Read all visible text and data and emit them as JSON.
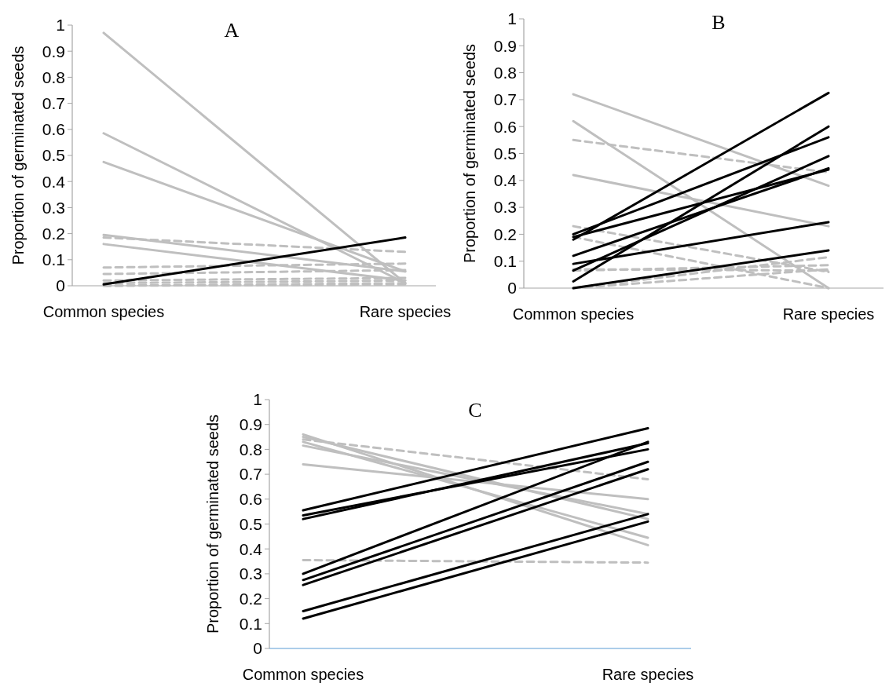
{
  "chart_data": [
    {
      "type": "line",
      "title": "A",
      "ylabel": "Proportion of germinated seeds",
      "categories": [
        "Common species",
        "Rare species"
      ],
      "ylim": [
        0,
        1
      ],
      "yticks": [
        0,
        0.1,
        0.2,
        0.3,
        0.4,
        0.5,
        0.6,
        0.7,
        0.8,
        0.9,
        1
      ],
      "grid": false,
      "marker": "none",
      "series": [
        {
          "color": "#bfbfbf",
          "line_style": "dashed",
          "values": [
            0.185,
            0.13
          ]
        },
        {
          "color": "#bfbfbf",
          "line_style": "dashed",
          "values": [
            0.07,
            0.085
          ]
        },
        {
          "color": "#bfbfbf",
          "line_style": "dashed",
          "values": [
            0.045,
            0.06
          ]
        },
        {
          "color": "#bfbfbf",
          "line_style": "dashed",
          "values": [
            0.02,
            0.03
          ]
        },
        {
          "color": "#bfbfbf",
          "line_style": "dashed",
          "values": [
            0.01,
            0.02
          ]
        },
        {
          "color": "#bfbfbf",
          "line_style": "dashed",
          "values": [
            0,
            0.005
          ]
        },
        {
          "color": "#bfbfbf",
          "line_style": "dashed",
          "values": [
            0,
            0.01
          ]
        },
        {
          "color": "#bfbfbf",
          "line_style": "solid",
          "values": [
            0.97,
            0.01
          ]
        },
        {
          "color": "#bfbfbf",
          "line_style": "solid",
          "values": [
            0.585,
            0.01
          ]
        },
        {
          "color": "#bfbfbf",
          "line_style": "solid",
          "values": [
            0.475,
            0.055
          ]
        },
        {
          "color": "#bfbfbf",
          "line_style": "solid",
          "values": [
            0.195,
            0.055
          ]
        },
        {
          "color": "#bfbfbf",
          "line_style": "solid",
          "values": [
            0.16,
            0.02
          ]
        },
        {
          "color": "#000000",
          "line_style": "solid",
          "values": [
            0.005,
            0.185
          ]
        }
      ]
    },
    {
      "type": "line",
      "title": "B",
      "ylabel": "Proportion of germinated seeds",
      "categories": [
        "Common species",
        "Rare species"
      ],
      "ylim": [
        0,
        1
      ],
      "yticks": [
        0,
        0.1,
        0.2,
        0.3,
        0.4,
        0.5,
        0.6,
        0.7,
        0.8,
        0.9,
        1
      ],
      "grid": false,
      "marker": "none",
      "series": [
        {
          "color": "#bfbfbf",
          "line_style": "dashed",
          "values": [
            0.55,
            0.43
          ]
        },
        {
          "color": "#bfbfbf",
          "line_style": "dashed",
          "values": [
            0.23,
            0.06
          ]
        },
        {
          "color": "#bfbfbf",
          "line_style": "dashed",
          "values": [
            0.19,
            0
          ]
        },
        {
          "color": "#bfbfbf",
          "line_style": "dashed",
          "values": [
            0.07,
            0.065
          ]
        },
        {
          "color": "#bfbfbf",
          "line_style": "dashed",
          "values": [
            0.065,
            0.085
          ]
        },
        {
          "color": "#bfbfbf",
          "line_style": "dashed",
          "values": [
            0,
            0.115
          ]
        },
        {
          "color": "#bfbfbf",
          "line_style": "dashed",
          "values": [
            0,
            0.07
          ]
        },
        {
          "color": "#bfbfbf",
          "line_style": "solid",
          "values": [
            0.72,
            0.38
          ]
        },
        {
          "color": "#bfbfbf",
          "line_style": "solid",
          "values": [
            0.62,
            0
          ]
        },
        {
          "color": "#bfbfbf",
          "line_style": "solid",
          "values": [
            0.42,
            0.23
          ]
        },
        {
          "color": "#000000",
          "line_style": "solid",
          "values": [
            0.18,
            0.725
          ]
        },
        {
          "color": "#000000",
          "line_style": "solid",
          "values": [
            0.025,
            0.6
          ]
        },
        {
          "color": "#000000",
          "line_style": "solid",
          "values": [
            0.2,
            0.56
          ]
        },
        {
          "color": "#000000",
          "line_style": "solid",
          "values": [
            0.065,
            0.49
          ]
        },
        {
          "color": "#000000",
          "line_style": "solid",
          "values": [
            0.12,
            0.445
          ]
        },
        {
          "color": "#000000",
          "line_style": "solid",
          "values": [
            0.19,
            0.44
          ]
        },
        {
          "color": "#000000",
          "line_style": "solid",
          "values": [
            0.09,
            0.245
          ]
        },
        {
          "color": "#000000",
          "line_style": "solid",
          "values": [
            0,
            0.14
          ]
        }
      ]
    },
    {
      "type": "line",
      "title": "C",
      "ylabel": "Proportion of germinated seeds",
      "categories": [
        "Common species",
        "Rare species"
      ],
      "ylim": [
        0,
        1
      ],
      "yticks": [
        0,
        0.1,
        0.2,
        0.3,
        0.4,
        0.5,
        0.6,
        0.7,
        0.8,
        0.9,
        1
      ],
      "grid": false,
      "marker": "none",
      "series": [
        {
          "color": "#bfbfbf",
          "line_style": "dashed",
          "values": [
            0.84,
            0.68
          ]
        },
        {
          "color": "#bfbfbf",
          "line_style": "dashed",
          "values": [
            0.355,
            0.345
          ]
        },
        {
          "color": "#bfbfbf",
          "line_style": "solid",
          "values": [
            0.86,
            0.415
          ]
        },
        {
          "color": "#bfbfbf",
          "line_style": "solid",
          "values": [
            0.85,
            0.52
          ]
        },
        {
          "color": "#bfbfbf",
          "line_style": "solid",
          "values": [
            0.83,
            0.445
          ]
        },
        {
          "color": "#bfbfbf",
          "line_style": "solid",
          "values": [
            0.815,
            0.54
          ]
        },
        {
          "color": "#bfbfbf",
          "line_style": "solid",
          "values": [
            0.74,
            0.6
          ]
        },
        {
          "color": "#000000",
          "line_style": "solid",
          "values": [
            0.555,
            0.885
          ]
        },
        {
          "color": "#000000",
          "line_style": "solid",
          "values": [
            0.535,
            0.8
          ]
        },
        {
          "color": "#000000",
          "line_style": "solid",
          "values": [
            0.52,
            0.825
          ]
        },
        {
          "color": "#000000",
          "line_style": "solid",
          "values": [
            0.3,
            0.83
          ]
        },
        {
          "color": "#000000",
          "line_style": "solid",
          "values": [
            0.275,
            0.75
          ]
        },
        {
          "color": "#000000",
          "line_style": "solid",
          "values": [
            0.255,
            0.72
          ]
        },
        {
          "color": "#000000",
          "line_style": "solid",
          "values": [
            0.15,
            0.54
          ]
        },
        {
          "color": "#000000",
          "line_style": "solid",
          "values": [
            0.12,
            0.51
          ]
        }
      ]
    }
  ]
}
